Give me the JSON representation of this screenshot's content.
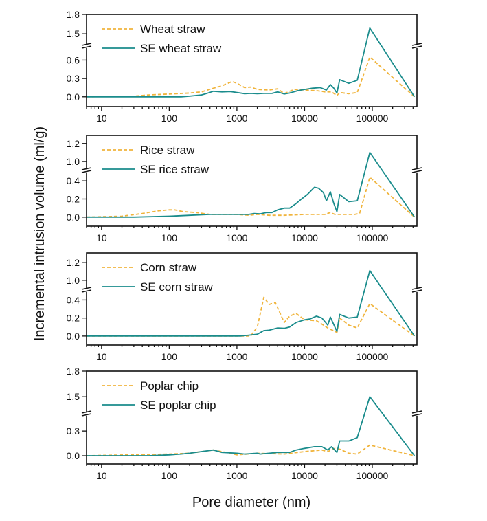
{
  "chart_data": [
    {
      "type": "line",
      "x_scale": "log",
      "xlim": [
        6,
        457000
      ],
      "x_ticks": [
        "10",
        "100",
        "1000",
        "10000",
        "100000"
      ],
      "y_broken": true,
      "y_lower_range": [
        -0.16,
        0.83
      ],
      "y_upper_range": [
        1.31,
        1.8
      ],
      "y_ticks": [
        "0.0",
        "0.3",
        "0.6",
        "1.5",
        "1.8"
      ],
      "legend": "top-left",
      "series": [
        {
          "name": "Wheat straw",
          "style": "dashed",
          "color": "#F0B43C",
          "x": [
            6,
            30,
            50,
            100,
            200,
            300,
            450,
            600,
            850,
            1000,
            1300,
            1600,
            2000,
            3000,
            4000,
            5000,
            7000,
            10000,
            15000,
            20000,
            25000,
            30000,
            33000,
            45000,
            60000,
            92000,
            420000
          ],
          "y": [
            0,
            0.01,
            0.03,
            0.045,
            0.06,
            0.08,
            0.14,
            0.18,
            0.25,
            0.22,
            0.15,
            0.16,
            0.12,
            0.11,
            0.13,
            0.05,
            0.12,
            0.11,
            0.1,
            0.08,
            0.08,
            0.02,
            0.07,
            0.05,
            0.07,
            0.65,
            0
          ]
        },
        {
          "name": "SE wheat straw",
          "style": "solid",
          "color": "#1A8C8C",
          "x": [
            6,
            150,
            200,
            300,
            350,
            450,
            600,
            800,
            1000,
            1300,
            1600,
            2000,
            2500,
            3300,
            4000,
            5000,
            6000,
            8000,
            10000,
            13000,
            17000,
            21000,
            24000,
            27000,
            30000,
            33000,
            45000,
            60000,
            92000,
            420000
          ],
          "y": [
            0,
            0,
            0.01,
            0.03,
            0.05,
            0.09,
            0.08,
            0.085,
            0.07,
            0.05,
            0.055,
            0.05,
            0.055,
            0.055,
            0.08,
            0.045,
            0.06,
            0.1,
            0.12,
            0.14,
            0.15,
            0.11,
            0.2,
            0.14,
            0.06,
            0.28,
            0.22,
            0.27,
            1.59,
            0
          ]
        }
      ]
    },
    {
      "type": "line",
      "x_scale": "log",
      "xlim": [
        6,
        457000
      ],
      "x_ticks": [
        "10",
        "100",
        "1000",
        "10000",
        "100000"
      ],
      "y_broken": true,
      "y_lower_range": [
        -0.1,
        0.515
      ],
      "y_upper_range": [
        0.9,
        1.29
      ],
      "y_ticks": [
        "0.0",
        "0.2",
        "0.4",
        "1.0",
        "1.2"
      ],
      "legend": "top-left",
      "series": [
        {
          "name": "Rice straw",
          "style": "dashed",
          "color": "#F0B43C",
          "x": [
            6,
            20,
            40,
            70,
            100,
            120,
            160,
            250,
            400,
            1000,
            1500,
            2000,
            3000,
            5000,
            10000,
            20000,
            24000,
            28000,
            40000,
            55000,
            65000,
            92000,
            420000
          ],
          "y": [
            0,
            0.01,
            0.04,
            0.07,
            0.08,
            0.08,
            0.06,
            0.05,
            0.03,
            0.03,
            0.02,
            0.03,
            0.02,
            0.02,
            0.03,
            0.03,
            0.05,
            0.03,
            0.03,
            0.03,
            0.04,
            0.44,
            0
          ]
        },
        {
          "name": "SE rice straw",
          "style": "solid",
          "color": "#1A8C8C",
          "x": [
            6,
            30,
            100,
            200,
            400,
            1000,
            1500,
            1800,
            2200,
            2700,
            3300,
            4000,
            5000,
            6000,
            7500,
            9000,
            11000,
            14000,
            16000,
            19000,
            21000,
            24000,
            27000,
            30000,
            33000,
            45000,
            60000,
            92000,
            420000
          ],
          "y": [
            0,
            0,
            0.01,
            0.02,
            0.03,
            0.03,
            0.03,
            0.04,
            0.035,
            0.05,
            0.05,
            0.08,
            0.1,
            0.1,
            0.15,
            0.2,
            0.25,
            0.33,
            0.32,
            0.27,
            0.18,
            0.28,
            0.15,
            0.06,
            0.25,
            0.17,
            0.18,
            1.1,
            0
          ]
        }
      ]
    },
    {
      "type": "line",
      "x_scale": "log",
      "xlim": [
        6,
        457000
      ],
      "x_ticks": [
        "10",
        "100",
        "1000",
        "10000",
        "100000"
      ],
      "y_broken": true,
      "y_lower_range": [
        -0.1,
        0.51
      ],
      "y_upper_range": [
        0.89,
        1.31
      ],
      "y_ticks": [
        "0.0",
        "0.2",
        "0.4",
        "1.0",
        "1.2"
      ],
      "legend": "top-left",
      "series": [
        {
          "name": "Corn straw",
          "style": "dashed",
          "color": "#F0B43C",
          "x": [
            6,
            1600,
            2000,
            2500,
            3000,
            3700,
            5000,
            6000,
            7500,
            10000,
            15000,
            22000,
            30000,
            33000,
            45000,
            60000,
            92000,
            420000
          ],
          "y": [
            0,
            0,
            0.1,
            0.43,
            0.35,
            0.37,
            0.15,
            0.22,
            0.25,
            0.18,
            0.17,
            0.09,
            0.04,
            0.2,
            0.12,
            0.09,
            0.36,
            0
          ]
        },
        {
          "name": "SE corn straw",
          "style": "solid",
          "color": "#1A8C8C",
          "x": [
            6,
            800,
            1100,
            1500,
            2000,
            2500,
            3000,
            4000,
            5000,
            6000,
            7500,
            10000,
            12000,
            15000,
            18000,
            22000,
            24000,
            30000,
            33000,
            45000,
            60000,
            92000,
            420000
          ],
          "y": [
            0,
            0,
            0,
            0.01,
            0.02,
            0.06,
            0.065,
            0.09,
            0.085,
            0.1,
            0.15,
            0.18,
            0.19,
            0.22,
            0.2,
            0.12,
            0.21,
            0.05,
            0.24,
            0.2,
            0.21,
            1.11,
            0
          ]
        }
      ]
    },
    {
      "type": "line",
      "x_scale": "log",
      "xlim": [
        6,
        457000
      ],
      "x_ticks": [
        "10",
        "100",
        "1000",
        "10000",
        "100000"
      ],
      "y_broken": true,
      "y_lower_range": [
        -0.1,
        0.51
      ],
      "y_upper_range": [
        1.3,
        1.8
      ],
      "y_ticks": [
        "0.0",
        "0.3",
        "1.5",
        "1.8"
      ],
      "legend": "top-left",
      "series": [
        {
          "name": "Poplar chip",
          "style": "dashed",
          "color": "#F0B43C",
          "x": [
            6,
            100,
            200,
            450,
            800,
            1000,
            2000,
            5000,
            10000,
            18000,
            22000,
            28000,
            33000,
            45000,
            60000,
            92000,
            420000
          ],
          "y": [
            0,
            0.02,
            0.03,
            0.07,
            0.03,
            0.01,
            0.03,
            0.02,
            0.05,
            0.07,
            0.05,
            0.09,
            0.08,
            0.03,
            0.02,
            0.13,
            0
          ]
        },
        {
          "name": "SE poplar chip",
          "style": "solid",
          "color": "#1A8C8C",
          "x": [
            6,
            50,
            100,
            150,
            200,
            300,
            450,
            600,
            1000,
            1300,
            2000,
            2200,
            3000,
            4000,
            5000,
            6000,
            7500,
            10000,
            14000,
            18000,
            22000,
            25000,
            30000,
            33000,
            45000,
            60000,
            92000,
            420000
          ],
          "y": [
            0,
            0,
            0.01,
            0.02,
            0.03,
            0.05,
            0.07,
            0.04,
            0.03,
            0.02,
            0.03,
            0.02,
            0.03,
            0.04,
            0.04,
            0.04,
            0.07,
            0.09,
            0.11,
            0.11,
            0.07,
            0.11,
            0.04,
            0.18,
            0.18,
            0.22,
            1.5,
            0
          ]
        }
      ]
    }
  ],
  "ylabel": "Incremental intrusion volume (ml/g)",
  "xlabel": "Pore diameter (nm)"
}
